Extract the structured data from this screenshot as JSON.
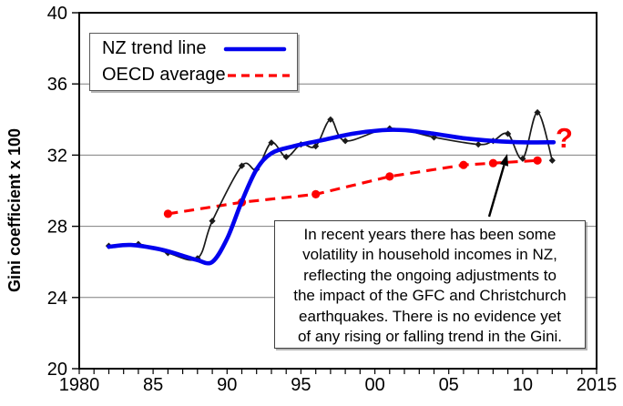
{
  "chart_data": {
    "type": "line",
    "title": "",
    "xlabel": "",
    "ylabel": "Gini coefficient x 100",
    "xlim": [
      1980,
      2015
    ],
    "ylim": [
      20,
      40
    ],
    "grid": "horizontal-only",
    "legend_position": "top-left",
    "x_ticks": {
      "values": [
        1980,
        1985,
        1990,
        1995,
        2000,
        2005,
        2010,
        2015
      ],
      "labels": [
        "1980",
        "85",
        "90",
        "95",
        "00",
        "05",
        "10",
        "2015"
      ],
      "minor_tick_every_year": true
    },
    "y_ticks": {
      "values": [
        40,
        36,
        32,
        28,
        24,
        20
      ],
      "labels": [
        "40",
        "36",
        "32",
        "28",
        "24",
        "20"
      ]
    },
    "y_gridlines": [
      36,
      32,
      28,
      24
    ],
    "series": [
      {
        "name": "NZ Gini (survey years)",
        "type": "thin-line-diamond-markers",
        "color": "#1a1a1a",
        "dash": "solid",
        "in_legend": false,
        "points": [
          [
            1982,
            26.9
          ],
          [
            1984,
            27.0
          ],
          [
            1986,
            26.5
          ],
          [
            1988,
            26.2
          ],
          [
            1989,
            28.3
          ],
          [
            1991,
            31.4
          ],
          [
            1992,
            31.2
          ],
          [
            1993,
            32.7
          ],
          [
            1994,
            31.9
          ],
          [
            1995,
            32.6
          ],
          [
            1996,
            32.5
          ],
          [
            1997,
            34.0
          ],
          [
            1998,
            32.8
          ],
          [
            2001,
            33.5
          ],
          [
            2004,
            33.0
          ],
          [
            2007,
            32.6
          ],
          [
            2008,
            32.8
          ],
          [
            2009,
            33.2
          ],
          [
            2010,
            31.8
          ],
          [
            2011,
            34.4
          ],
          [
            2012,
            31.7
          ]
        ]
      },
      {
        "name": "NZ trend line",
        "type": "thick-smooth-line",
        "color": "#0202ee",
        "dash": "solid",
        "in_legend": true,
        "points": [
          [
            1982,
            26.85
          ],
          [
            1983.5,
            26.95
          ],
          [
            1985.5,
            26.7
          ],
          [
            1987,
            26.35
          ],
          [
            1988,
            26.1
          ],
          [
            1989,
            26.0
          ],
          [
            1990,
            27.3
          ],
          [
            1991,
            29.4
          ],
          [
            1992,
            31.2
          ],
          [
            1993,
            32.1
          ],
          [
            1994.5,
            32.5
          ],
          [
            1996.5,
            32.85
          ],
          [
            1998.5,
            33.2
          ],
          [
            2000.5,
            33.4
          ],
          [
            2002,
            33.4
          ],
          [
            2004,
            33.2
          ],
          [
            2006,
            32.95
          ],
          [
            2008,
            32.8
          ],
          [
            2010,
            32.72
          ],
          [
            2012.1,
            32.72
          ]
        ]
      },
      {
        "name": "OECD average",
        "type": "dashed-line-dot-markers",
        "color": "#fe0000",
        "dash": "dashed",
        "in_legend": true,
        "points": [
          [
            1986,
            28.7
          ],
          [
            1991,
            29.35
          ],
          [
            1996,
            29.8
          ],
          [
            2001,
            30.8
          ],
          [
            2006,
            31.45
          ],
          [
            2008,
            31.55
          ],
          [
            2011,
            31.7
          ]
        ]
      }
    ]
  },
  "annotation_box": {
    "lines": [
      "In recent years there has been some",
      "volatility in household incomes in NZ,",
      "reflecting the ongoing adjustments to",
      "the impact of the GFC and Christchurch",
      "earthquakes. There is no evidence yet",
      "of any rising or falling trend in the Gini."
    ]
  },
  "question_mark": {
    "text": "?",
    "color": "#fe0000"
  }
}
